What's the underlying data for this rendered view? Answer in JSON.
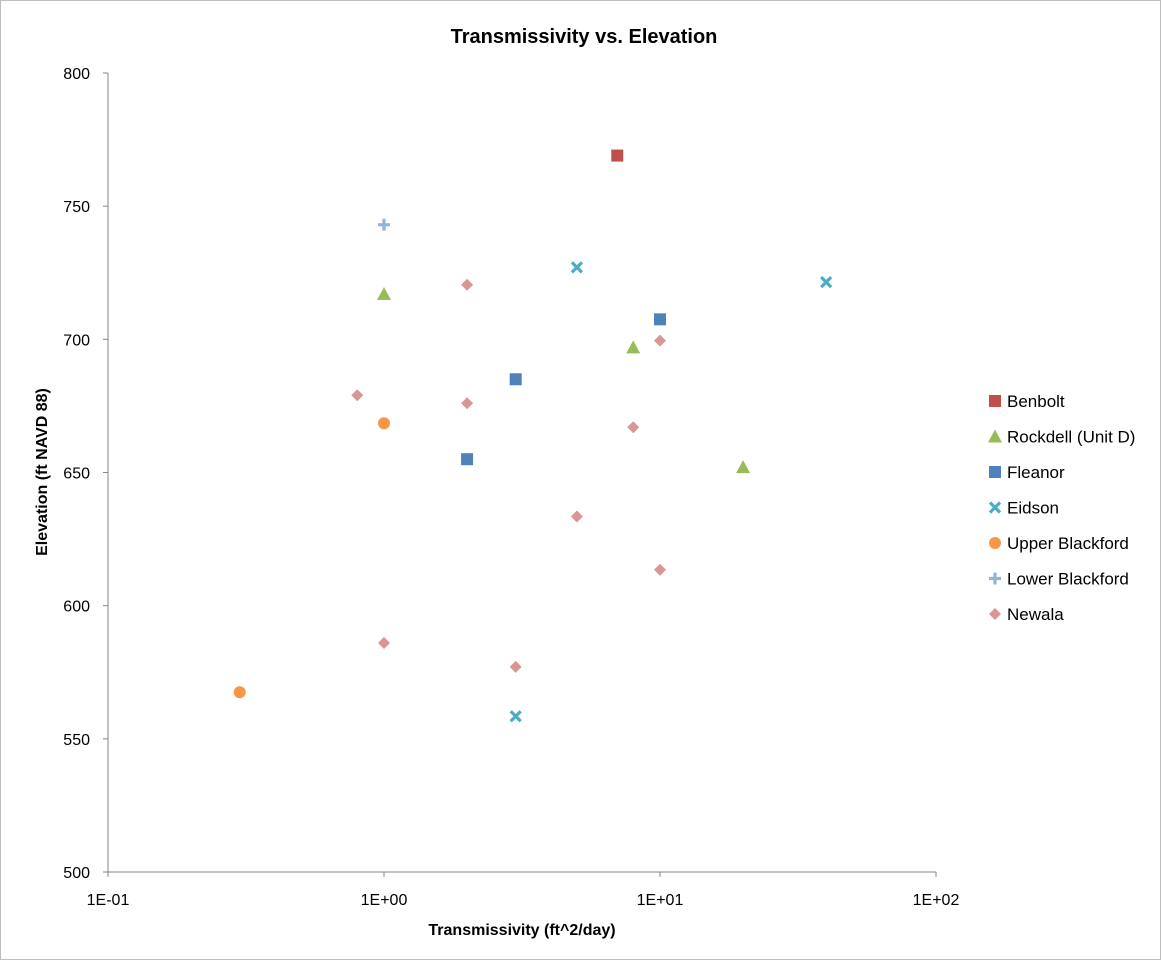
{
  "chart_data": {
    "type": "scatter",
    "title": "Transmissivity vs. Elevation",
    "xlabel": "Transmissivity (ft^2/day)",
    "ylabel": "Elevation (ft NAVD 88)",
    "x_scale": "log",
    "xlim": [
      0.1,
      100
    ],
    "ylim": [
      500,
      800
    ],
    "x_ticks": [
      0.1,
      1,
      10,
      100
    ],
    "x_tick_labels": [
      "1E-01",
      "1E+00",
      "1E+01",
      "1E+02"
    ],
    "y_ticks": [
      500,
      550,
      600,
      650,
      700,
      750,
      800
    ],
    "y_tick_labels": [
      "500",
      "550",
      "600",
      "650",
      "700",
      "750",
      "800"
    ],
    "grid": false,
    "legend_position": "right",
    "series": [
      {
        "name": "Benbolt",
        "marker": "square",
        "color": "#c0504d",
        "points": [
          [
            7,
            769
          ]
        ]
      },
      {
        "name": "Rockdell (Unit D)",
        "marker": "triangle",
        "color": "#9bbb59",
        "points": [
          [
            1,
            717
          ],
          [
            8,
            697
          ],
          [
            20,
            652
          ]
        ]
      },
      {
        "name": "Fleanor",
        "marker": "square",
        "color": "#4f81bd",
        "points": [
          [
            10,
            707.5
          ],
          [
            3,
            685
          ],
          [
            2,
            655
          ]
        ]
      },
      {
        "name": "Eidson",
        "marker": "x",
        "color": "#4bacc6",
        "points": [
          [
            5,
            727
          ],
          [
            40,
            721.5
          ],
          [
            3,
            558.5
          ]
        ]
      },
      {
        "name": "Upper Blackford",
        "marker": "circle",
        "color": "#f79646",
        "points": [
          [
            1,
            668.5
          ],
          [
            0.3,
            567.5
          ]
        ]
      },
      {
        "name": "Lower Blackford",
        "marker": "plus",
        "color": "#95b3d7",
        "points": [
          [
            1,
            743
          ]
        ]
      },
      {
        "name": "Newala",
        "marker": "diamond",
        "color": "#d99694",
        "points": [
          [
            2,
            720.5
          ],
          [
            10,
            699.5
          ],
          [
            0.8,
            679
          ],
          [
            2,
            676
          ],
          [
            8,
            667
          ],
          [
            5,
            633.5
          ],
          [
            10,
            613.5
          ],
          [
            1,
            586
          ],
          [
            3,
            577
          ]
        ]
      }
    ]
  }
}
